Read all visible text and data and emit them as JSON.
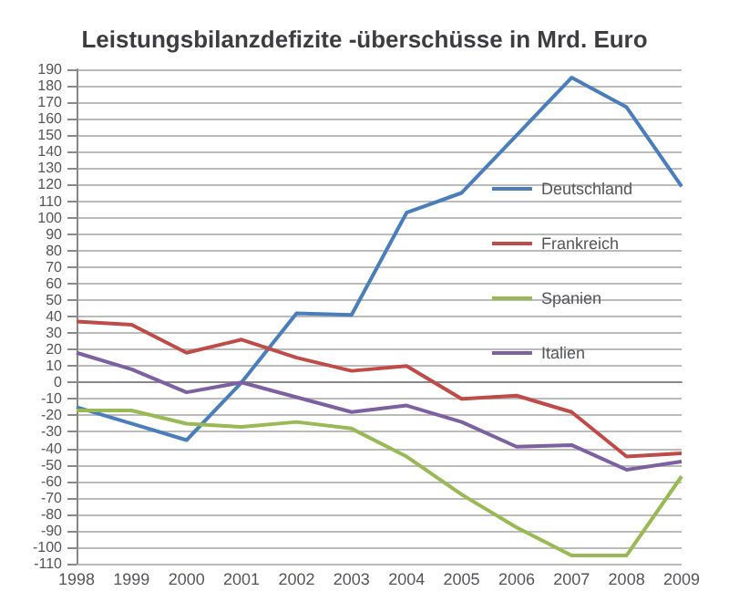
{
  "chart_data": {
    "type": "line",
    "title": "Leistungsbilanzdefizite -überschüsse in Mrd. Euro",
    "categories": [
      "1998",
      "1999",
      "2000",
      "2001",
      "2002",
      "2003",
      "2004",
      "2005",
      "2006",
      "2007",
      "2008",
      "2009"
    ],
    "series": [
      {
        "name": "Deutschland",
        "color": "#4a7ebb",
        "values": [
          -15,
          -25,
          -35,
          0,
          42,
          41,
          103,
          115,
          150,
          185,
          167,
          119
        ]
      },
      {
        "name": "Frankreich",
        "color": "#be4b48",
        "values": [
          37,
          35,
          18,
          26,
          15,
          7,
          10,
          -10,
          -8,
          -18,
          -45,
          -43
        ]
      },
      {
        "name": "Spanien",
        "color": "#98b954",
        "values": [
          -17,
          -17,
          -25,
          -27,
          -24,
          -28,
          -45,
          -68,
          -88,
          -105,
          -105,
          -57
        ]
      },
      {
        "name": "Italien",
        "color": "#7d60a0",
        "values": [
          18,
          8,
          -6,
          0,
          -9,
          -18,
          -14,
          -24,
          -39,
          -38,
          -53,
          -48
        ]
      }
    ],
    "ylim": [
      -110,
      190
    ],
    "yticks": [
      -110,
      -100,
      -90,
      -80,
      -70,
      -60,
      -50,
      -40,
      -30,
      -20,
      -10,
      0,
      10,
      20,
      30,
      40,
      50,
      60,
      70,
      80,
      90,
      100,
      110,
      120,
      130,
      140,
      150,
      160,
      170,
      180,
      190
    ],
    "grid": "y",
    "legend": "right",
    "marker": "none",
    "line_style": "solid"
  }
}
